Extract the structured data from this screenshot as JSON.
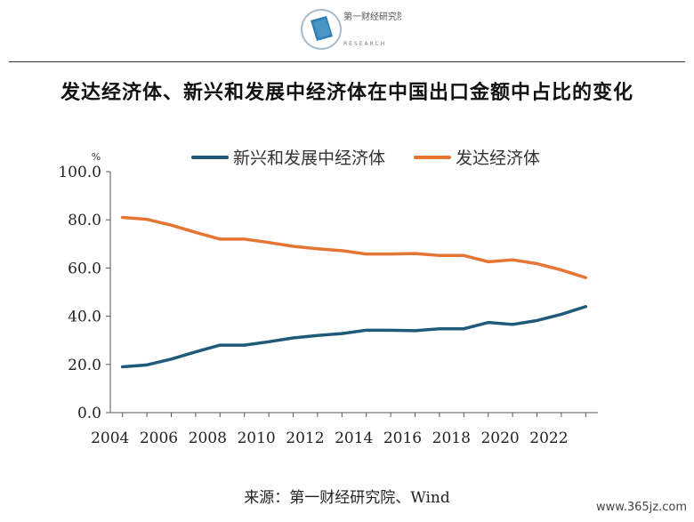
{
  "header": {
    "logo_text": "第一财经研究院",
    "logo_subtext": "RESEARCH"
  },
  "title": "发达经济体、新兴和发展中经济体在中国出口金额中占比的变化",
  "source": "来源：第一财经研究院、Wind",
  "watermark": "www.365jz.com",
  "chart_data": {
    "type": "line",
    "ylabel": "%",
    "ylim": [
      0,
      100
    ],
    "yticks": [
      "0.0",
      "20.0",
      "40.0",
      "60.0",
      "80.0",
      "100.0"
    ],
    "xticks": [
      "2004",
      "2006",
      "2008",
      "2010",
      "2012",
      "2014",
      "2016",
      "2018",
      "2020",
      "2022"
    ],
    "x": [
      2004,
      2005,
      2006,
      2007,
      2008,
      2009,
      2010,
      2011,
      2012,
      2013,
      2014,
      2015,
      2016,
      2017,
      2018,
      2019,
      2020,
      2021,
      2022,
      2023
    ],
    "legend_position": "top-center",
    "grid": false,
    "series": [
      {
        "name": "新兴和发展中经济体",
        "color": "#1f5a7a",
        "values": [
          19.0,
          19.8,
          22.2,
          25.2,
          28.0,
          28.0,
          29.4,
          31.0,
          32.0,
          32.8,
          34.2,
          34.2,
          34.0,
          34.8,
          34.8,
          37.4,
          36.6,
          38.2,
          40.8,
          44.0
        ]
      },
      {
        "name": "发达经济体",
        "color": "#e67532",
        "values": [
          81.0,
          80.2,
          77.8,
          74.8,
          72.0,
          72.0,
          70.6,
          69.0,
          68.0,
          67.2,
          65.8,
          65.8,
          66.0,
          65.2,
          65.2,
          62.6,
          63.4,
          61.8,
          59.2,
          56.0
        ]
      }
    ]
  }
}
